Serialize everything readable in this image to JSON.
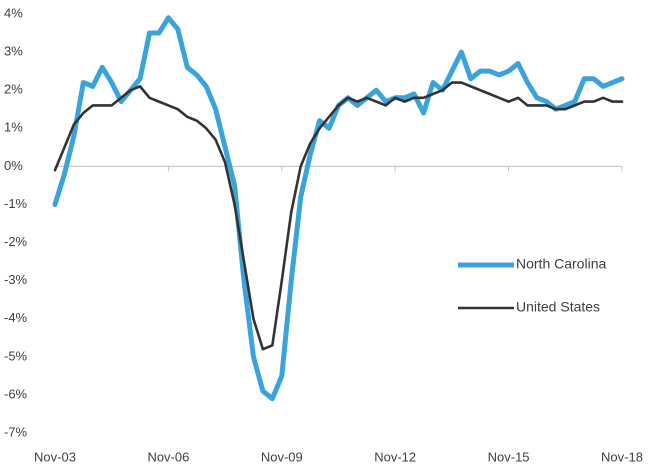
{
  "chart_data": {
    "type": "line",
    "categories": [
      "Nov-03",
      null,
      null,
      null,
      null,
      null,
      null,
      null,
      null,
      null,
      null,
      null,
      "Nov-06",
      null,
      null,
      null,
      null,
      null,
      null,
      null,
      null,
      null,
      null,
      null,
      "Nov-09",
      null,
      null,
      null,
      null,
      null,
      null,
      null,
      null,
      null,
      null,
      null,
      "Nov-12",
      null,
      null,
      null,
      null,
      null,
      null,
      null,
      null,
      null,
      null,
      null,
      "Nov-15",
      null,
      null,
      null,
      null,
      null,
      null,
      null,
      null,
      null,
      null,
      null,
      "Nov-18"
    ],
    "series": [
      {
        "name": "North Carolina",
        "color": "#3ba3db",
        "values": [
          -1.0,
          -0.2,
          0.8,
          2.2,
          2.1,
          2.6,
          2.2,
          1.7,
          2.0,
          2.3,
          3.5,
          3.5,
          3.9,
          3.6,
          2.6,
          2.4,
          2.1,
          1.5,
          0.5,
          -0.5,
          -3.0,
          -5.0,
          -5.9,
          -6.1,
          -5.5,
          -3.0,
          -0.8,
          0.3,
          1.2,
          1.0,
          1.6,
          1.8,
          1.6,
          1.8,
          2.0,
          1.7,
          1.8,
          1.8,
          1.9,
          1.4,
          2.2,
          2.0,
          2.5,
          3.0,
          2.3,
          2.5,
          2.5,
          2.4,
          2.5,
          2.7,
          2.2,
          1.8,
          1.7,
          1.5,
          1.6,
          1.7,
          2.3,
          2.3,
          2.1,
          2.2,
          2.3
        ]
      },
      {
        "name": "United States",
        "color": "#333333",
        "values": [
          -0.1,
          0.5,
          1.1,
          1.4,
          1.6,
          1.6,
          1.6,
          1.8,
          2.0,
          2.1,
          1.8,
          1.7,
          1.6,
          1.5,
          1.3,
          1.2,
          1.0,
          0.7,
          0.1,
          -1.0,
          -2.5,
          -4.0,
          -4.8,
          -4.7,
          -3.0,
          -1.2,
          0.0,
          0.6,
          1.0,
          1.3,
          1.6,
          1.8,
          1.7,
          1.8,
          1.7,
          1.6,
          1.8,
          1.7,
          1.8,
          1.8,
          1.9,
          2.0,
          2.2,
          2.2,
          2.1,
          2.0,
          1.9,
          1.8,
          1.7,
          1.8,
          1.6,
          1.6,
          1.6,
          1.5,
          1.5,
          1.6,
          1.7,
          1.7,
          1.8,
          1.7,
          1.7
        ]
      }
    ],
    "ylim": [
      -7,
      4
    ],
    "yticks": [
      {
        "value": 4,
        "label": "4%"
      },
      {
        "value": 3,
        "label": "3%"
      },
      {
        "value": 2,
        "label": "2%"
      },
      {
        "value": 1,
        "label": "1%"
      },
      {
        "value": 0,
        "label": "0%"
      },
      {
        "value": -1,
        "label": "-1%"
      },
      {
        "value": -2,
        "label": "-2%"
      },
      {
        "value": -3,
        "label": "-3%"
      },
      {
        "value": -4,
        "label": "-4%"
      },
      {
        "value": -5,
        "label": "-5%"
      },
      {
        "value": -6,
        "label": "-6%"
      },
      {
        "value": -7,
        "label": "-7%"
      }
    ],
    "grid": false,
    "legend": "right"
  }
}
